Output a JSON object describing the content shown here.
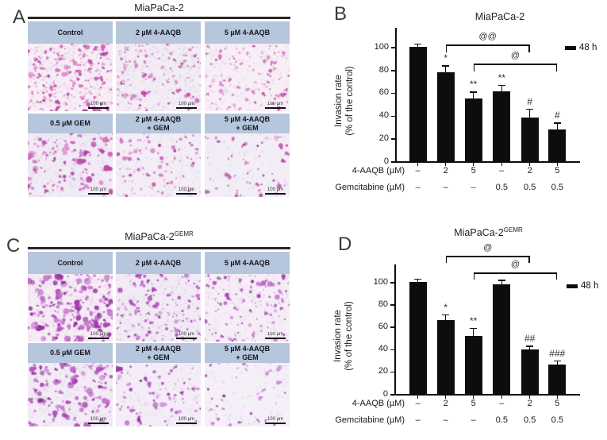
{
  "colors": {
    "header_bg": "#b6c6dc",
    "bar": "#0d0d0d",
    "axis": "#1a1a1a",
    "speckle": "#d9c8e3",
    "stain_palette_a": [
      "#c03ba3",
      "#cf58b5",
      "#a93098",
      "#d977c4",
      "#b3439f"
    ],
    "stain_palette_c": [
      "#a83cb4",
      "#b44fc0",
      "#8f2b9b",
      "#c66ecf",
      "#9b33a6"
    ]
  },
  "panels": {
    "A": {
      "letter": "A",
      "title": {
        "base": "MiaPaCa-2",
        "sup": ""
      },
      "images": [
        {
          "label": "Control",
          "scalebar": "100 µm",
          "density": 230,
          "dot_scale": 1.0,
          "bg": "#f9eef6",
          "palette": "a"
        },
        {
          "label": "2 µM 4-AAQB",
          "scalebar": "100 µm",
          "density": 135,
          "dot_scale": 0.95,
          "bg": "#f2ecf5",
          "palette": "a"
        },
        {
          "label": "5 µM 4-AAQB",
          "scalebar": "100 µm",
          "density": 110,
          "dot_scale": 0.95,
          "bg": "#f7eef6",
          "palette": "a"
        },
        {
          "label": "0.5 µM GEM",
          "scalebar": "100 µm",
          "density": 120,
          "dot_scale": 1.25,
          "bg": "#f1ebf5",
          "palette": "a"
        },
        {
          "label": "2 µM 4-AAQB\n+ GEM",
          "scalebar": "100 µm",
          "density": 90,
          "dot_scale": 1.1,
          "bg": "#f3edf6",
          "palette": "a"
        },
        {
          "label": "5 µM 4-AAQB\n+ GEM",
          "scalebar": "100 µm",
          "density": 55,
          "dot_scale": 1.05,
          "bg": "#f2eef6",
          "palette": "a"
        }
      ]
    },
    "B": {
      "letter": "B"
    },
    "C": {
      "letter": "C",
      "title": {
        "base": "MiaPaCa-2",
        "sup": "GEMR"
      },
      "images": [
        {
          "label": "Control",
          "scalebar": "100 µm",
          "density": 190,
          "dot_scale": 1.5,
          "bg": "#f7ecf6",
          "palette": "c"
        },
        {
          "label": "2 µM 4-AAQB",
          "scalebar": "100 µm",
          "density": 140,
          "dot_scale": 1.1,
          "bg": "#f2ebf5",
          "palette": "c"
        },
        {
          "label": "5 µM 4-AAQB",
          "scalebar": "100 µm",
          "density": 115,
          "dot_scale": 1.05,
          "bg": "#f6edf7",
          "palette": "c"
        },
        {
          "label": "0.5 µM GEM",
          "scalebar": "100 µm",
          "density": 130,
          "dot_scale": 1.4,
          "bg": "#f3ecf6",
          "palette": "c"
        },
        {
          "label": "2 µM 4-AAQB\n+ GEM",
          "scalebar": "100 µm",
          "density": 75,
          "dot_scale": 1.2,
          "bg": "#f4edf7",
          "palette": "c"
        },
        {
          "label": "5 µM 4-AAQB\n+ GEM",
          "scalebar": "100 µm",
          "density": 45,
          "dot_scale": 1.1,
          "bg": "#f5eff7",
          "palette": "c"
        }
      ]
    },
    "D": {
      "letter": "D"
    }
  },
  "chart_data": [
    {
      "panel": "B",
      "type": "bar",
      "title": "MiaPaCa-2",
      "title_sup": "",
      "ylabel_line1": "Invasion rate",
      "ylabel_line2": "(% of the control)",
      "ylim": [
        0,
        115
      ],
      "yticks": [
        0,
        20,
        40,
        60,
        80,
        100
      ],
      "legend": "48 h",
      "values": [
        100,
        78,
        55,
        61,
        38,
        28
      ],
      "errors": [
        3,
        6,
        6,
        6,
        8,
        6
      ],
      "sig": [
        "",
        "*",
        "**",
        "**",
        "#",
        "#"
      ],
      "brackets": [
        {
          "from": 1,
          "to": 4,
          "label": "@@"
        },
        {
          "from": 2,
          "to": 5,
          "label": "@"
        }
      ],
      "xrows": [
        {
          "label": "4-AAQB (µM)",
          "values": [
            "–",
            "2",
            "5",
            "–",
            "2",
            "5"
          ]
        },
        {
          "label": "Gemcitabine (µM)",
          "values": [
            "–",
            "–",
            "–",
            "0.5",
            "0.5",
            "0.5"
          ]
        }
      ]
    },
    {
      "panel": "D",
      "type": "bar",
      "title": "MiaPaCa-2",
      "title_sup": "GEMR",
      "ylabel_line1": "Invasion rate",
      "ylabel_line2": "(% of the control)",
      "ylim": [
        0,
        115
      ],
      "yticks": [
        0,
        20,
        40,
        60,
        80,
        100
      ],
      "legend": "48 h",
      "values": [
        100,
        66,
        52,
        98,
        40,
        26
      ],
      "errors": [
        3,
        5,
        7,
        4,
        3,
        4
      ],
      "sig": [
        "",
        "*",
        "**",
        "",
        "##",
        "###"
      ],
      "brackets": [
        {
          "from": 1,
          "to": 4,
          "label": "@"
        },
        {
          "from": 2,
          "to": 5,
          "label": "@"
        }
      ],
      "xrows": [
        {
          "label": "4-AAQB (µM)",
          "values": [
            "–",
            "2",
            "5",
            "–",
            "2",
            "5"
          ]
        },
        {
          "label": "Gemcitabine (µM)",
          "values": [
            "–",
            "–",
            "–",
            "0.5",
            "0.5",
            "0.5"
          ]
        }
      ]
    }
  ]
}
